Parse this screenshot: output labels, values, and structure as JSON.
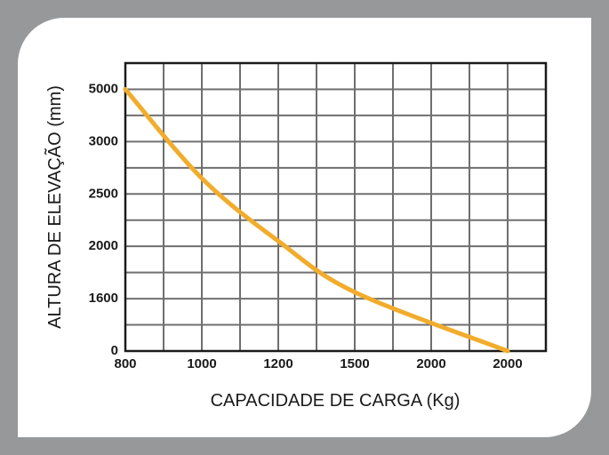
{
  "chart_data": {
    "type": "line",
    "title": "",
    "xlabel": "CAPACIDADE DE CARGA (Kg)",
    "ylabel": "ALTURA DE ELEVAÇÃO (mm)",
    "x_ticks": [
      "800",
      "1000",
      "1200",
      "1500",
      "2000",
      "2000"
    ],
    "y_ticks": [
      "0",
      "1600",
      "2000",
      "2500",
      "3000",
      "5000"
    ],
    "grid": true,
    "line_color": "#f2ac2c",
    "series": [
      {
        "x": [
          800,
          1000,
          1200,
          1500,
          2000
        ],
        "y": [
          5000,
          2650,
          2050,
          1650,
          0
        ]
      }
    ]
  }
}
